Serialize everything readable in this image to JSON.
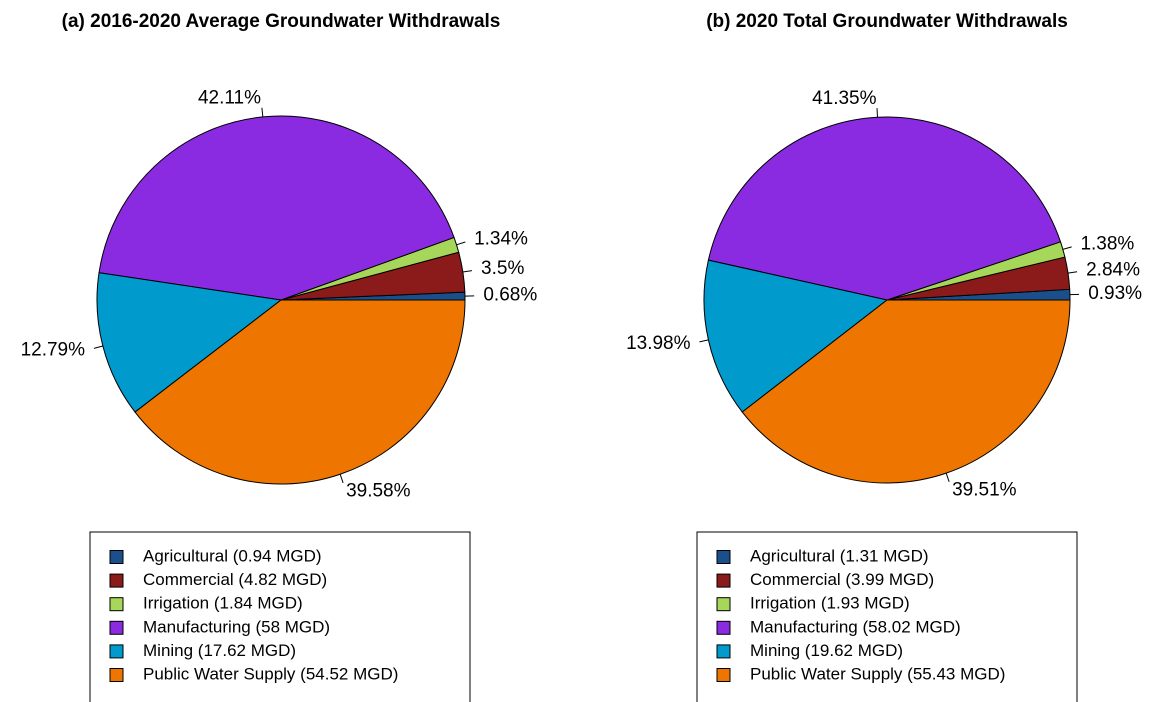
{
  "chart_data": [
    {
      "type": "pie",
      "title": "(a) 2016-2020 Average Groundwater Withdrawals",
      "categories": [
        "Agricultural (0.94 MGD)",
        "Commercial (4.82 MGD)",
        "Irrigation (1.84 MGD)",
        "Manufacturing (58 MGD)",
        "Mining (17.62 MGD)",
        "Public Water Supply (54.52 MGD)"
      ],
      "values": [
        0.68,
        3.5,
        1.34,
        42.11,
        12.79,
        39.58
      ],
      "value_labels": [
        "0.68%",
        "3.5%",
        "1.34%",
        "42.11%",
        "12.79%",
        "39.58%"
      ],
      "colors": [
        "#1b4f8c",
        "#8b1a1a",
        "#a6d65a",
        "#8a2be2",
        "#009acd",
        "#ee7600"
      ]
    },
    {
      "type": "pie",
      "title": "(b) 2020 Total Groundwater Withdrawals",
      "categories": [
        "Agricultural (1.31 MGD)",
        "Commercial (3.99 MGD)",
        "Irrigation (1.93 MGD)",
        "Manufacturing (58.02 MGD)",
        "Mining (19.62 MGD)",
        "Public Water Supply (55.43 MGD)"
      ],
      "values": [
        0.93,
        2.84,
        1.38,
        41.35,
        13.98,
        39.51
      ],
      "value_labels": [
        "0.93%",
        "2.84%",
        "1.38%",
        "41.35%",
        "13.98%",
        "39.51%"
      ],
      "colors": [
        "#1b4f8c",
        "#8b1a1a",
        "#a6d65a",
        "#8a2be2",
        "#009acd",
        "#ee7600"
      ]
    }
  ]
}
